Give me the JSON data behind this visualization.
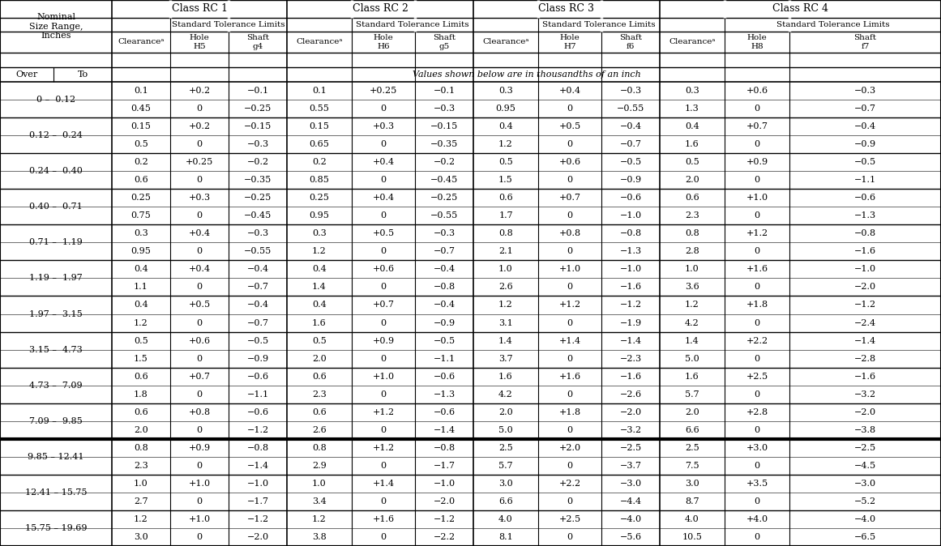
{
  "size_ranges": [
    "0 –  0.12",
    "0.12 –  0.24",
    "0.24 –  0.40",
    "0.40 –  0.71",
    "0.71 –  1.19",
    "1.19 –  1.97",
    "1.97 –  3.15",
    "3.15 –  4.73",
    "4.73 –  7.09",
    "7.09 –  9.85",
    "9.85 – 12.41",
    "12.41 – 15.75",
    "15.75 – 19.69"
  ],
  "data": [
    [
      "0.1",
      "+0.2",
      "−0.1",
      "0.1",
      "+0.25",
      "−0.1",
      "0.3",
      "+0.4",
      "−0.3",
      "0.3",
      "+0.6",
      "−0.3"
    ],
    [
      "0.45",
      "0",
      "−0.25",
      "0.55",
      "0",
      "−0.3",
      "0.95",
      "0",
      "−0.55",
      "1.3",
      "0",
      "−0.7"
    ],
    [
      "0.15",
      "+0.2",
      "−0.15",
      "0.15",
      "+0.3",
      "−0.15",
      "0.4",
      "+0.5",
      "−0.4",
      "0.4",
      "+0.7",
      "−0.4"
    ],
    [
      "0.5",
      "0",
      "−0.3",
      "0.65",
      "0",
      "−0.35",
      "1.2",
      "0",
      "−0.7",
      "1.6",
      "0",
      "−0.9"
    ],
    [
      "0.2",
      "+0.25",
      "−0.2",
      "0.2",
      "+0.4",
      "−0.2",
      "0.5",
      "+0.6",
      "−0.5",
      "0.5",
      "+0.9",
      "−0.5"
    ],
    [
      "0.6",
      "0",
      "−0.35",
      "0.85",
      "0",
      "−0.45",
      "1.5",
      "0",
      "−0.9",
      "2.0",
      "0",
      "−1.1"
    ],
    [
      "0.25",
      "+0.3",
      "−0.25",
      "0.25",
      "+0.4",
      "−0.25",
      "0.6",
      "+0.7",
      "−0.6",
      "0.6",
      "+1.0",
      "−0.6"
    ],
    [
      "0.75",
      "0",
      "−0.45",
      "0.95",
      "0",
      "−0.55",
      "1.7",
      "0",
      "−1.0",
      "2.3",
      "0",
      "−1.3"
    ],
    [
      "0.3",
      "+0.4",
      "−0.3",
      "0.3",
      "+0.5",
      "−0.3",
      "0.8",
      "+0.8",
      "−0.8",
      "0.8",
      "+1.2",
      "−0.8"
    ],
    [
      "0.95",
      "0",
      "−0.55",
      "1.2",
      "0",
      "−0.7",
      "2.1",
      "0",
      "−1.3",
      "2.8",
      "0",
      "−1.6"
    ],
    [
      "0.4",
      "+0.4",
      "−0.4",
      "0.4",
      "+0.6",
      "−0.4",
      "1.0",
      "+1.0",
      "−1.0",
      "1.0",
      "+1.6",
      "−1.0"
    ],
    [
      "1.1",
      "0",
      "−0.7",
      "1.4",
      "0",
      "−0.8",
      "2.6",
      "0",
      "−1.6",
      "3.6",
      "0",
      "−2.0"
    ],
    [
      "0.4",
      "+0.5",
      "−0.4",
      "0.4",
      "+0.7",
      "−0.4",
      "1.2",
      "+1.2",
      "−1.2",
      "1.2",
      "+1.8",
      "−1.2"
    ],
    [
      "1.2",
      "0",
      "−0.7",
      "1.6",
      "0",
      "−0.9",
      "3.1",
      "0",
      "−1.9",
      "4.2",
      "0",
      "−2.4"
    ],
    [
      "0.5",
      "+0.6",
      "−0.5",
      "0.5",
      "+0.9",
      "−0.5",
      "1.4",
      "+1.4",
      "−1.4",
      "1.4",
      "+2.2",
      "−1.4"
    ],
    [
      "1.5",
      "0",
      "−0.9",
      "2.0",
      "0",
      "−1.1",
      "3.7",
      "0",
      "−2.3",
      "5.0",
      "0",
      "−2.8"
    ],
    [
      "0.6",
      "+0.7",
      "−0.6",
      "0.6",
      "+1.0",
      "−0.6",
      "1.6",
      "+1.6",
      "−1.6",
      "1.6",
      "+2.5",
      "−1.6"
    ],
    [
      "1.8",
      "0",
      "−1.1",
      "2.3",
      "0",
      "−1.3",
      "4.2",
      "0",
      "−2.6",
      "5.7",
      "0",
      "−3.2"
    ],
    [
      "0.6",
      "+0.8",
      "−0.6",
      "0.6",
      "+1.2",
      "−0.6",
      "2.0",
      "+1.8",
      "−2.0",
      "2.0",
      "+2.8",
      "−2.0"
    ],
    [
      "2.0",
      "0",
      "−1.2",
      "2.6",
      "0",
      "−1.4",
      "5.0",
      "0",
      "−3.2",
      "6.6",
      "0",
      "−3.8"
    ],
    [
      "0.8",
      "+0.9",
      "−0.8",
      "0.8",
      "+1.2",
      "−0.8",
      "2.5",
      "+2.0",
      "−2.5",
      "2.5",
      "+3.0",
      "−2.5"
    ],
    [
      "2.3",
      "0",
      "−1.4",
      "2.9",
      "0",
      "−1.7",
      "5.7",
      "0",
      "−3.7",
      "7.5",
      "0",
      "−4.5"
    ],
    [
      "1.0",
      "+1.0",
      "−1.0",
      "1.0",
      "+1.4",
      "−1.0",
      "3.0",
      "+2.2",
      "−3.0",
      "3.0",
      "+3.5",
      "−3.0"
    ],
    [
      "2.7",
      "0",
      "−1.7",
      "3.4",
      "0",
      "−2.0",
      "6.6",
      "0",
      "−4.4",
      "8.7",
      "0",
      "−5.2"
    ],
    [
      "1.2",
      "+1.0",
      "−1.2",
      "1.2",
      "+1.6",
      "−1.2",
      "4.0",
      "+2.5",
      "−4.0",
      "4.0",
      "+4.0",
      "−4.0"
    ],
    [
      "3.0",
      "0",
      "−2.0",
      "3.8",
      "0",
      "−2.2",
      "8.1",
      "0",
      "−5.6",
      "10.5",
      "0",
      "−6.5"
    ]
  ],
  "note": "Values shown below are in thousandths of an inch",
  "bg_color": "#ffffff",
  "text_color": "#000000",
  "thick_row_after_group": 9
}
